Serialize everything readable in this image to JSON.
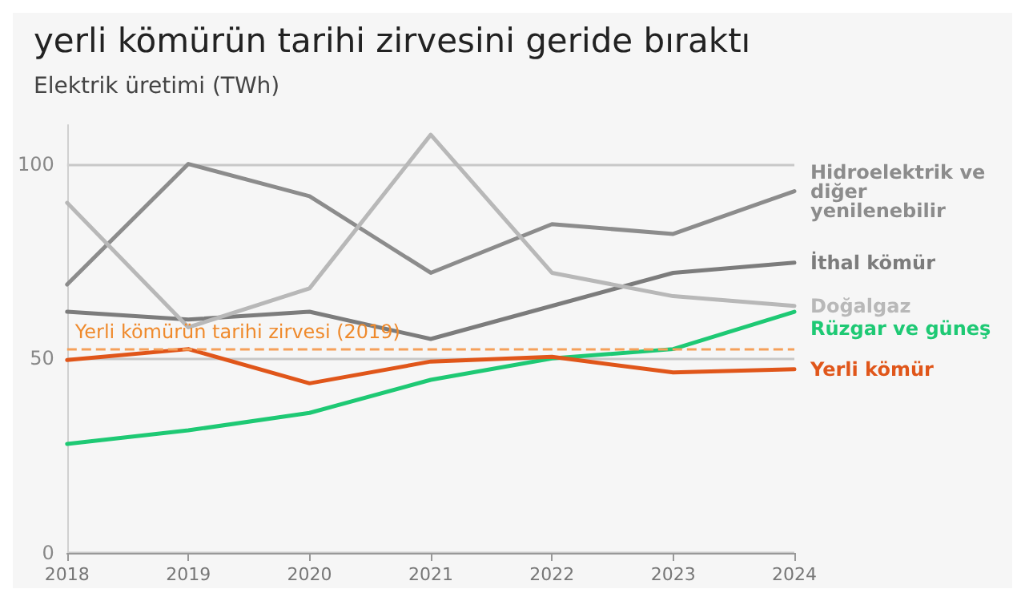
{
  "chart_data": {
    "type": "line",
    "title": "yerli kömürün tarihi zirvesini geride bıraktı",
    "subtitle": "Elektrik üretimi (TWh)",
    "categories": [
      "2018",
      "2019",
      "2020",
      "2021",
      "2022",
      "2023",
      "2024"
    ],
    "series": [
      {
        "name": "Hidroelektrik ve diğer yenilenebilir",
        "color": "#8c8c8c",
        "values": [
          69,
          100,
          91.7,
          72,
          84.5,
          82,
          93
        ]
      },
      {
        "name": "İthal kömür",
        "color": "#7c7c7c",
        "values": [
          62,
          60,
          62,
          55,
          63.5,
          72,
          74.6
        ]
      },
      {
        "name": "Doğalgaz",
        "color": "#b8b8b8",
        "values": [
          90,
          58,
          68,
          107.5,
          72,
          66,
          63.5
        ]
      },
      {
        "name": "Rüzgar ve güneş",
        "color": "#1ec974",
        "values": [
          28,
          31.5,
          36,
          44.5,
          50,
          52.4,
          62
        ]
      },
      {
        "name": "Yerli kömür",
        "color": "#e0561a",
        "values": [
          49.6,
          52.4,
          43.6,
          49.2,
          50.4,
          46.4,
          47.2
        ]
      }
    ],
    "ylim": [
      0,
      110
    ],
    "yticks": [
      0,
      50,
      100
    ],
    "grid": "y",
    "legend": "right",
    "marker": "none",
    "line_style": "solid",
    "ref_lines": [
      {
        "axis": "y",
        "value": 52.4,
        "label": "Yerli kömürün tarihi zirvesi (2019)",
        "color": "#f5a05a",
        "line_style": "dashed"
      }
    ]
  }
}
